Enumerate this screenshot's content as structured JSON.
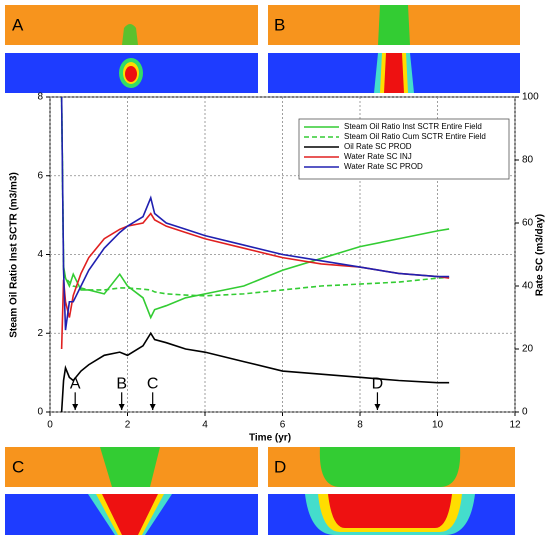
{
  "panels": [
    {
      "label": "A"
    },
    {
      "label": "B"
    },
    {
      "label": "C"
    },
    {
      "label": "D"
    }
  ],
  "chart_data": {
    "type": "line",
    "xlabel": "Time (yr)",
    "ylabel": "Steam Oil Ratio Inst SCTR (m3/m3)",
    "y2label": "Rate SC (m3/day)",
    "x": [
      0.3,
      0.35,
      0.4,
      0.5,
      0.6,
      0.8,
      1.0,
      1.4,
      1.8,
      2.0,
      2.4,
      2.6,
      2.7,
      3.0,
      3.5,
      4,
      5,
      6,
      7,
      8,
      9,
      10,
      10.3
    ],
    "series": [
      {
        "name": "Steam Oil Ratio Inst SCTR Entire  Field",
        "color": "#33cc33",
        "dash": false,
        "axis": "y",
        "values": [
          8,
          3.7,
          3.4,
          3.2,
          3.5,
          3.1,
          3.1,
          3.0,
          3.5,
          3.2,
          2.9,
          2.4,
          2.6,
          2.7,
          2.9,
          3.0,
          3.2,
          3.6,
          3.9,
          4.2,
          4.4,
          4.6,
          4.65
        ]
      },
      {
        "name": "Steam Oil Ratio Cum SCTR Entire  Field",
        "color": "#33cc33",
        "dash": true,
        "axis": "y",
        "values": [
          8,
          3.6,
          3.4,
          3.3,
          3.2,
          3.15,
          3.1,
          3.1,
          3.15,
          3.15,
          3.12,
          3.1,
          3.05,
          3.0,
          2.97,
          2.95,
          3.0,
          3.1,
          3.2,
          3.25,
          3.3,
          3.4,
          3.42
        ]
      },
      {
        "name": "Oil Rate SC PROD",
        "color": "#000000",
        "dash": false,
        "axis": "y2",
        "values": [
          0,
          10,
          14,
          11,
          10,
          13,
          15,
          18,
          19,
          18,
          21,
          25,
          23,
          22,
          20,
          19,
          16,
          13,
          12,
          11,
          10,
          9.3,
          9.3
        ]
      },
      {
        "name": "Water Rate SC INJ",
        "color": "#e02020",
        "dash": false,
        "axis": "y2",
        "values": [
          20,
          42,
          35,
          30,
          37,
          44,
          49,
          55,
          58,
          59,
          60,
          63,
          61,
          59,
          57,
          55,
          52,
          49,
          47,
          46,
          44,
          43,
          42.5
        ]
      },
      {
        "name": "Water Rate SC PROD",
        "color": "#2020b0",
        "dash": false,
        "axis": "y2",
        "values": [
          100,
          45,
          26,
          35,
          35,
          40,
          45,
          52,
          57,
          59,
          62,
          68,
          63,
          60,
          58,
          56,
          53,
          50,
          48,
          46,
          44,
          43,
          43
        ]
      }
    ],
    "annotations": [
      {
        "text": "A",
        "x": 0.65
      },
      {
        "text": "B",
        "x": 1.85
      },
      {
        "text": "C",
        "x": 2.65
      },
      {
        "text": "D",
        "x": 8.45
      }
    ],
    "xlim": [
      0,
      12
    ],
    "xticks": [
      0,
      2,
      4,
      6,
      8,
      10,
      12
    ],
    "ylim": [
      0,
      8
    ],
    "yticks": [
      0,
      2,
      4,
      6,
      8
    ],
    "y2lim": [
      0,
      100
    ],
    "y2ticks": [
      0,
      20,
      40,
      60,
      80,
      100
    ],
    "grid": true,
    "legend": "upper right"
  }
}
